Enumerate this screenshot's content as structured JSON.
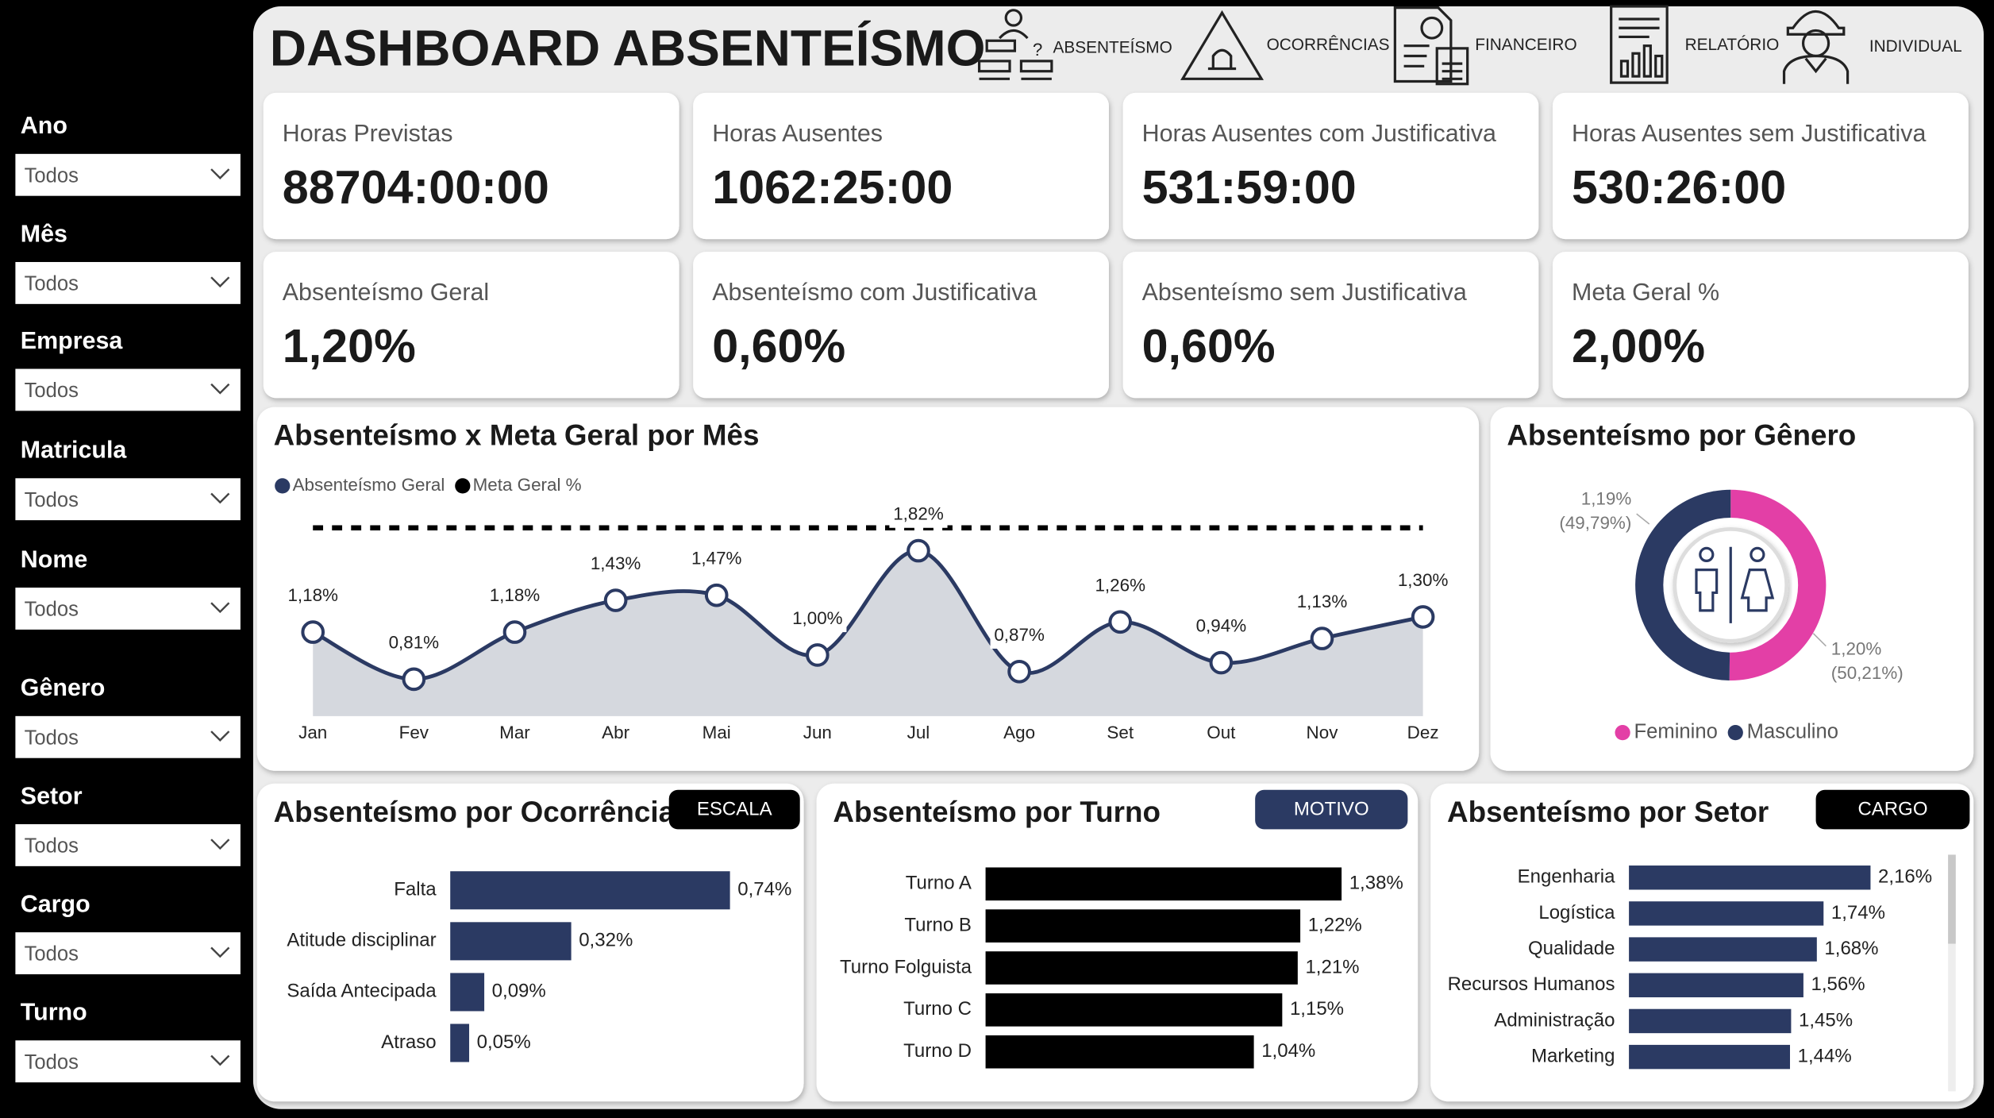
{
  "header": {
    "title": "DASHBOARD ABSENTEÍSMO"
  },
  "nav": [
    "ABSENTEÍSMO",
    "OCORRÊNCIAS",
    "FINANCEIRO",
    "RELATÓRIO",
    "INDIVIDUAL"
  ],
  "filters": [
    {
      "label": "Ano",
      "value": "Todos"
    },
    {
      "label": "Mês",
      "value": "Todos"
    },
    {
      "label": "Empresa",
      "value": "Todos"
    },
    {
      "label": "Matricula",
      "value": "Todos"
    },
    {
      "label": "Nome",
      "value": "Todos"
    },
    {
      "label": "Gênero",
      "value": "Todos"
    },
    {
      "label": "Setor",
      "value": "Todos"
    },
    {
      "label": "Cargo",
      "value": "Todos"
    },
    {
      "label": "Turno",
      "value": "Todos"
    }
  ],
  "kpis": [
    {
      "label": "Horas Previstas",
      "value": "88704:00:00"
    },
    {
      "label": "Horas Ausentes",
      "value": "1062:25:00"
    },
    {
      "label": "Horas Ausentes com Justificativa",
      "value": "531:59:00"
    },
    {
      "label": "Horas Ausentes sem Justificativa",
      "value": "530:26:00"
    },
    {
      "label": "Absenteísmo Geral",
      "value": "1,20%"
    },
    {
      "label": "Absenteísmo com Justificativa",
      "value": "0,60%"
    },
    {
      "label": "Absenteísmo sem Justificativa",
      "value": "0,60%"
    },
    {
      "label": "Meta Geral %",
      "value": "2,00%"
    }
  ],
  "chart_data": [
    {
      "type": "line",
      "title": "Absenteísmo x Meta Geral por Mês",
      "categories": [
        "Jan",
        "Fev",
        "Mar",
        "Abr",
        "Mai",
        "Jun",
        "Jul",
        "Ago",
        "Set",
        "Out",
        "Nov",
        "Dez"
      ],
      "series": [
        {
          "name": "Absenteísmo Geral",
          "color": "#2b3a63",
          "values": [
            1.18,
            0.81,
            1.18,
            1.43,
            1.47,
            1.0,
            1.82,
            0.87,
            1.26,
            0.94,
            1.13,
            1.3
          ],
          "value_labels": [
            "1,18%",
            "0,81%",
            "1,18%",
            "1,43%",
            "1,47%",
            "1,00%",
            "1,82%",
            "0,87%",
            "1,26%",
            "0,94%",
            "1,13%",
            "1,30%"
          ]
        },
        {
          "name": "Meta Geral %",
          "color": "#000000",
          "values": [
            2,
            2,
            2,
            2,
            2,
            2,
            2,
            2,
            2,
            2,
            2,
            2
          ]
        }
      ],
      "ylim": [
        0.5,
        2.1
      ],
      "area_color": "#d5d8de"
    },
    {
      "type": "donut",
      "title": "Absenteísmo por Gênero",
      "categories": [
        "Feminino",
        "Masculino"
      ],
      "colors": [
        "#e33fa6",
        "#2b3a63"
      ],
      "values": [
        50.21,
        49.79
      ],
      "value_labels": [
        "(50,21%)",
        "(49,79%)"
      ],
      "absenteeism_labels": [
        "1,20%",
        "1,19%"
      ]
    },
    {
      "type": "hbar",
      "title": "Absenteísmo por Ocorrência",
      "button": "ESCALA",
      "button_color": "#000000",
      "categories": [
        "Falta",
        "Atitude disciplinar",
        "Saída Antecipada",
        "Atraso"
      ],
      "values": [
        0.74,
        0.32,
        0.09,
        0.05
      ],
      "value_labels": [
        "0,74%",
        "0,32%",
        "0,09%",
        "0,05%"
      ],
      "color": "#2b3a63",
      "xlim": [
        0,
        0.74
      ]
    },
    {
      "type": "hbar",
      "title": "Absenteísmo por Turno",
      "button": "MOTIVO",
      "button_color": "#2b3a63",
      "categories": [
        "Turno A",
        "Turno B",
        "Turno Folguista",
        "Turno C",
        "Turno D"
      ],
      "values": [
        1.38,
        1.22,
        1.21,
        1.15,
        1.04
      ],
      "value_labels": [
        "1,38%",
        "1,22%",
        "1,21%",
        "1,15%",
        "1,04%"
      ],
      "color": "#000000",
      "xlim": [
        0,
        1.38
      ]
    },
    {
      "type": "hbar",
      "title": "Absenteísmo por Setor",
      "button": "CARGO",
      "button_color": "#000000",
      "categories": [
        "Engenharia",
        "Logística",
        "Qualidade",
        "Recursos Humanos",
        "Administração",
        "Marketing"
      ],
      "values": [
        2.16,
        1.74,
        1.68,
        1.56,
        1.45,
        1.44
      ],
      "value_labels": [
        "2,16%",
        "1,74%",
        "1,68%",
        "1,56%",
        "1,45%",
        "1,44%"
      ],
      "color": "#2b3a63",
      "xlim": [
        0,
        2.16
      ]
    }
  ]
}
